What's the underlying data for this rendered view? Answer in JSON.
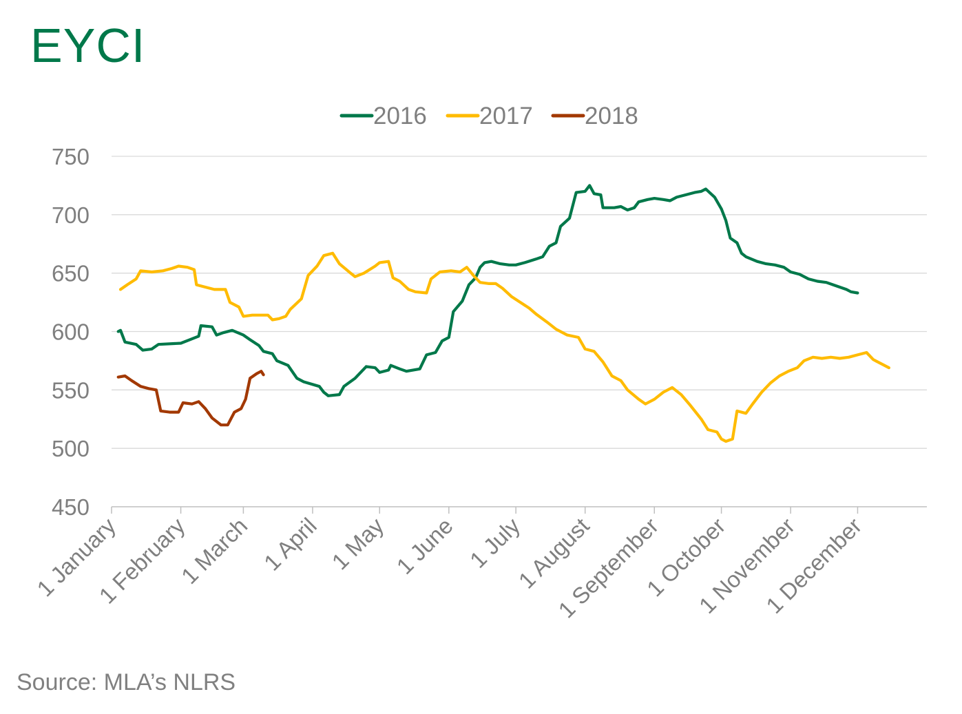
{
  "title": "EYCI",
  "source": "Source: MLA’s NLRS",
  "colors": {
    "title": "#00784a",
    "s2016": "#00784a",
    "s2017": "#ffbb00",
    "s2018": "#a23800",
    "grid": "#d9d9d9",
    "axis": "#bfbfbf"
  },
  "chart_data": {
    "type": "line",
    "title": "EYCI",
    "xlabel": "",
    "ylabel": "",
    "ylim": [
      450,
      750
    ],
    "yticks": [
      "750",
      "700",
      "650",
      "600",
      "550",
      "500",
      "450"
    ],
    "xticks": [
      "1 January",
      "1 February",
      "1 March",
      "1 April",
      "1 May",
      "1 June",
      "1 July",
      "1 August",
      "1 September",
      "1 October",
      "1 November",
      "1 December"
    ],
    "grid": "horizontal",
    "legend": "top-center",
    "series": [
      {
        "name": "2016",
        "color": "#00784a",
        "points": [
          [
            "Jan 4",
            600
          ],
          [
            "Jan 5",
            601
          ],
          [
            "Jan 7",
            591
          ],
          [
            "Jan 12",
            589
          ],
          [
            "Jan 15",
            584
          ],
          [
            "Jan 19",
            585
          ],
          [
            "Jan 22",
            589
          ],
          [
            "Feb 1",
            590
          ],
          [
            "Feb 5",
            593
          ],
          [
            "Feb 9",
            596
          ],
          [
            "Feb 10",
            605
          ],
          [
            "Feb 15",
            604
          ],
          [
            "Feb 17",
            597
          ],
          [
            "Feb 20",
            599
          ],
          [
            "Feb 24",
            601
          ],
          [
            "Mar 1",
            597
          ],
          [
            "Mar 4",
            593
          ],
          [
            "Mar 8",
            588
          ],
          [
            "Mar 10",
            583
          ],
          [
            "Mar 14",
            581
          ],
          [
            "Mar 16",
            575
          ],
          [
            "Mar 21",
            571
          ],
          [
            "Mar 25",
            560
          ],
          [
            "Mar 28",
            557
          ],
          [
            "Apr 4",
            553
          ],
          [
            "Apr 6",
            548
          ],
          [
            "Apr 8",
            545
          ],
          [
            "Apr 13",
            546
          ],
          [
            "Apr 15",
            553
          ],
          [
            "Apr 20",
            560
          ],
          [
            "Apr 25",
            570
          ],
          [
            "Apr 29",
            569
          ],
          [
            "May 1",
            565
          ],
          [
            "May 5",
            567
          ],
          [
            "May 6",
            571
          ],
          [
            "May 10",
            568
          ],
          [
            "May 13",
            566
          ],
          [
            "May 19",
            568
          ],
          [
            "May 22",
            580
          ],
          [
            "May 26",
            582
          ],
          [
            "May 29",
            592
          ],
          [
            "Jun 1",
            595
          ],
          [
            "Jun 3",
            617
          ],
          [
            "Jun 7",
            626
          ],
          [
            "Jun 10",
            640
          ],
          [
            "Jun 13",
            646
          ],
          [
            "Jun 15",
            655
          ],
          [
            "Jun 17",
            659
          ],
          [
            "Jun 20",
            660
          ],
          [
            "Jun 24",
            658
          ],
          [
            "Jun 28",
            657
          ],
          [
            "Jul 1",
            657
          ],
          [
            "Jul 5",
            659
          ],
          [
            "Jul 10",
            662
          ],
          [
            "Jul 13",
            664
          ],
          [
            "Jul 16",
            673
          ],
          [
            "Jul 19",
            676
          ],
          [
            "Jul 21",
            690
          ],
          [
            "Jul 25",
            697
          ],
          [
            "Jul 28",
            719
          ],
          [
            "Aug 1",
            720
          ],
          [
            "Aug 3",
            725
          ],
          [
            "Aug 5",
            718
          ],
          [
            "Aug 8",
            717
          ],
          [
            "Aug 9",
            706
          ],
          [
            "Aug 14",
            706
          ],
          [
            "Aug 17",
            707
          ],
          [
            "Aug 20",
            704
          ],
          [
            "Aug 23",
            706
          ],
          [
            "Aug 25",
            711
          ],
          [
            "Aug 29",
            713
          ],
          [
            "Sep 1",
            714
          ],
          [
            "Sep 5",
            713
          ],
          [
            "Sep 8",
            712
          ],
          [
            "Sep 11",
            715
          ],
          [
            "Sep 15",
            717
          ],
          [
            "Sep 19",
            719
          ],
          [
            "Sep 22",
            720
          ],
          [
            "Sep 24",
            722
          ],
          [
            "Sep 28",
            715
          ],
          [
            "Oct 1",
            705
          ],
          [
            "Oct 3",
            695
          ],
          [
            "Oct 5",
            680
          ],
          [
            "Oct 8",
            676
          ],
          [
            "Oct 10",
            667
          ],
          [
            "Oct 12",
            664
          ],
          [
            "Oct 17",
            660
          ],
          [
            "Oct 21",
            658
          ],
          [
            "Oct 25",
            657
          ],
          [
            "Oct 29",
            655
          ],
          [
            "Nov 1",
            651
          ],
          [
            "Nov 5",
            649
          ],
          [
            "Nov 9",
            645
          ],
          [
            "Nov 13",
            643
          ],
          [
            "Nov 17",
            642
          ],
          [
            "Nov 20",
            640
          ],
          [
            "Nov 23",
            638
          ],
          [
            "Nov 26",
            636
          ],
          [
            "Nov 28",
            634
          ],
          [
            "Dec 1",
            633
          ]
        ]
      },
      {
        "name": "2017",
        "color": "#ffbb00",
        "points": [
          [
            "Jan 5",
            636
          ],
          [
            "Jan 8",
            640
          ],
          [
            "Jan 12",
            645
          ],
          [
            "Jan 14",
            652
          ],
          [
            "Jan 19",
            651
          ],
          [
            "Jan 24",
            652
          ],
          [
            "Jan 28",
            654
          ],
          [
            "Jan 31",
            656
          ],
          [
            "Feb 4",
            655
          ],
          [
            "Feb 7",
            653
          ],
          [
            "Feb 8",
            640
          ],
          [
            "Feb 12",
            638
          ],
          [
            "Feb 16",
            636
          ],
          [
            "Feb 21",
            636
          ],
          [
            "Feb 23",
            625
          ],
          [
            "Feb 27",
            621
          ],
          [
            "Mar 1",
            613
          ],
          [
            "Mar 5",
            614
          ],
          [
            "Mar 8",
            614
          ],
          [
            "Mar 12",
            614
          ],
          [
            "Mar 14",
            610
          ],
          [
            "Mar 17",
            611
          ],
          [
            "Mar 20",
            613
          ],
          [
            "Mar 22",
            619
          ],
          [
            "Mar 27",
            628
          ],
          [
            "Mar 30",
            648
          ],
          [
            "Apr 3",
            656
          ],
          [
            "Apr 6",
            665
          ],
          [
            "Apr 10",
            667
          ],
          [
            "Apr 13",
            658
          ],
          [
            "Apr 18",
            650
          ],
          [
            "Apr 20",
            647
          ],
          [
            "Apr 24",
            650
          ],
          [
            "Apr 29",
            656
          ],
          [
            "May 1",
            659
          ],
          [
            "May 5",
            660
          ],
          [
            "May 7",
            646
          ],
          [
            "May 10",
            643
          ],
          [
            "May 14",
            636
          ],
          [
            "May 17",
            634
          ],
          [
            "May 22",
            633
          ],
          [
            "May 24",
            645
          ],
          [
            "May 28",
            651
          ],
          [
            "Jun 2",
            652
          ],
          [
            "Jun 6",
            651
          ],
          [
            "Jun 9",
            655
          ],
          [
            "Jun 12",
            648
          ],
          [
            "Jun 15",
            642
          ],
          [
            "Jun 19",
            641
          ],
          [
            "Jun 22",
            641
          ],
          [
            "Jun 25",
            637
          ],
          [
            "Jun 29",
            630
          ],
          [
            "Jul 3",
            625
          ],
          [
            "Jul 7",
            620
          ],
          [
            "Jul 10",
            615
          ],
          [
            "Jul 15",
            608
          ],
          [
            "Jul 19",
            602
          ],
          [
            "Jul 24",
            597
          ],
          [
            "Jul 29",
            595
          ],
          [
            "Aug 1",
            585
          ],
          [
            "Aug 5",
            583
          ],
          [
            "Aug 9",
            574
          ],
          [
            "Aug 13",
            562
          ],
          [
            "Aug 17",
            558
          ],
          [
            "Aug 20",
            550
          ],
          [
            "Aug 25",
            542
          ],
          [
            "Aug 28",
            538
          ],
          [
            "Sep 1",
            542
          ],
          [
            "Sep 5",
            548
          ],
          [
            "Sep 9",
            552
          ],
          [
            "Sep 13",
            546
          ],
          [
            "Sep 17",
            537
          ],
          [
            "Sep 22",
            525
          ],
          [
            "Sep 25",
            516
          ],
          [
            "Sep 29",
            514
          ],
          [
            "Oct 1",
            508
          ],
          [
            "Oct 3",
            506
          ],
          [
            "Oct 6",
            508
          ],
          [
            "Oct 8",
            532
          ],
          [
            "Oct 12",
            530
          ],
          [
            "Oct 15",
            538
          ],
          [
            "Oct 19",
            548
          ],
          [
            "Oct 23",
            556
          ],
          [
            "Oct 27",
            562
          ],
          [
            "Oct 31",
            566
          ],
          [
            "Nov 4",
            569
          ],
          [
            "Nov 7",
            575
          ],
          [
            "Nov 11",
            578
          ],
          [
            "Nov 15",
            577
          ],
          [
            "Nov 19",
            578
          ],
          [
            "Nov 23",
            577
          ],
          [
            "Nov 27",
            578
          ],
          [
            "Dec 1",
            580
          ],
          [
            "Dec 5",
            582
          ],
          [
            "Dec 8",
            576
          ],
          [
            "Dec 12",
            572
          ],
          [
            "Dec 15",
            569
          ]
        ]
      },
      {
        "name": "2018",
        "color": "#a23800",
        "points": [
          [
            "Jan 4",
            561
          ],
          [
            "Jan 7",
            562
          ],
          [
            "Jan 10",
            558
          ],
          [
            "Jan 14",
            553
          ],
          [
            "Jan 18",
            551
          ],
          [
            "Jan 21",
            550
          ],
          [
            "Jan 23",
            532
          ],
          [
            "Jan 27",
            531
          ],
          [
            "Jan 31",
            531
          ],
          [
            "Feb 2",
            539
          ],
          [
            "Feb 6",
            538
          ],
          [
            "Feb 9",
            540
          ],
          [
            "Feb 12",
            534
          ],
          [
            "Feb 15",
            526
          ],
          [
            "Feb 19",
            520
          ],
          [
            "Feb 22",
            520
          ],
          [
            "Feb 25",
            531
          ],
          [
            "Feb 28",
            534
          ],
          [
            "Mar 2",
            542
          ],
          [
            "Mar 4",
            560
          ],
          [
            "Mar 7",
            564
          ],
          [
            "Mar 9",
            566
          ],
          [
            "Mar 10",
            563
          ]
        ]
      }
    ]
  }
}
